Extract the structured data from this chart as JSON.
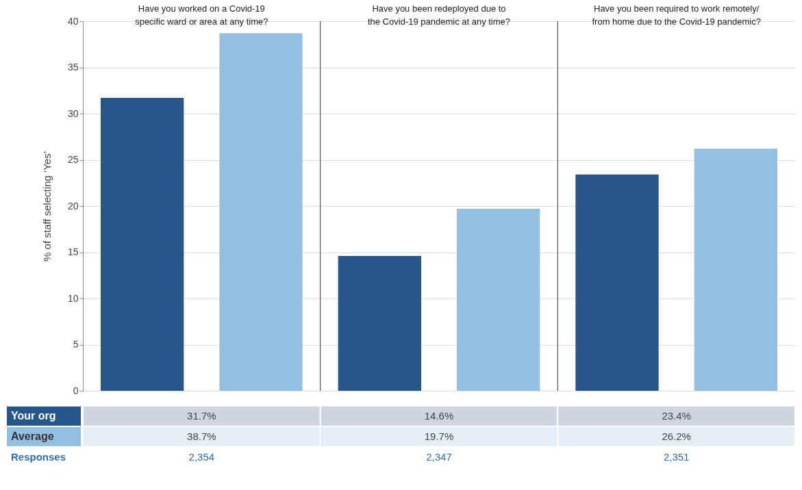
{
  "chart_data": {
    "type": "bar",
    "categories": [
      "Have you worked on a Covid-19\nspecific ward or area at any time?",
      "Have you been redeployed due to\nthe Covid-19 pandemic at any time?",
      "Have you been required to work remotely/\nfrom home due to the Covid-19 pandemic?"
    ],
    "series": [
      {
        "name": "Your org",
        "color": "#26568a",
        "values": [
          31.7,
          14.6,
          23.4
        ],
        "value_labels": [
          "31.7%",
          "14.6%",
          "23.4%"
        ]
      },
      {
        "name": "Average",
        "color": "#92bfe2",
        "values": [
          38.7,
          19.7,
          26.2
        ],
        "value_labels": [
          "38.7%",
          "19.7%",
          "26.2%"
        ]
      }
    ],
    "ylabel": "% of staff selecting ‘Yes’",
    "ylim": [
      0,
      40
    ],
    "yticks": [
      0,
      5,
      10,
      15,
      20,
      25,
      30,
      35,
      40
    ],
    "grid": "y",
    "annotations": [
      "Responses",
      "2,354",
      "2,347",
      "2,351"
    ]
  }
}
